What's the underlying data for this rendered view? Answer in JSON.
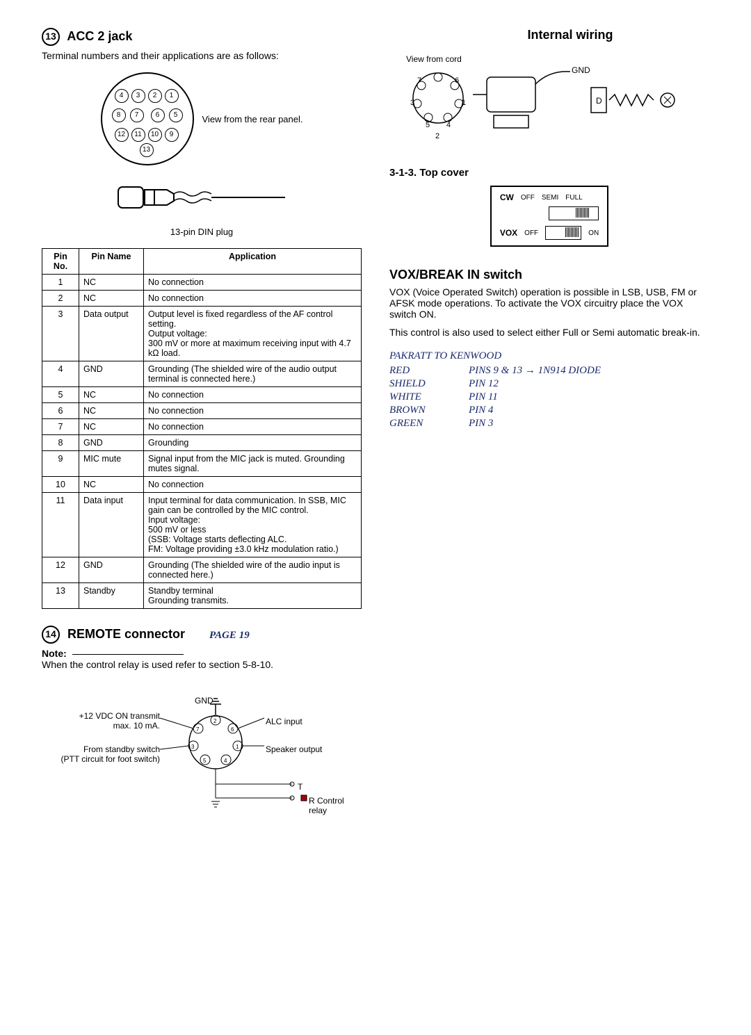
{
  "acc2": {
    "number": "13",
    "title": "ACC 2 jack",
    "intro": "Terminal numbers and their applications are as follows:",
    "view_label": "View from the rear panel.",
    "plug_caption": "13-pin DIN plug",
    "headers": {
      "pinno": "Pin No.",
      "pinname": "Pin Name",
      "application": "Application"
    },
    "rows": [
      {
        "no": "1",
        "name": "NC",
        "app": "No connection"
      },
      {
        "no": "2",
        "name": "NC",
        "app": "No connection"
      },
      {
        "no": "3",
        "name": "Data output",
        "app": "Output level is fixed regardless of the AF control setting.\nOutput voltage:\n  300 mV or more at maximum receiving input with 4.7 kΩ load."
      },
      {
        "no": "4",
        "name": "GND",
        "app": "Grounding (The shielded wire of the audio output terminal is connected here.)"
      },
      {
        "no": "5",
        "name": "NC",
        "app": "No connection"
      },
      {
        "no": "6",
        "name": "NC",
        "app": "No connection"
      },
      {
        "no": "7",
        "name": "NC",
        "app": "No connection"
      },
      {
        "no": "8",
        "name": "GND",
        "app": "Grounding"
      },
      {
        "no": "9",
        "name": "MIC mute",
        "app": "Signal input from the MIC jack is muted. Grounding mutes signal."
      },
      {
        "no": "10",
        "name": "NC",
        "app": "No connection"
      },
      {
        "no": "11",
        "name": "Data input",
        "app": "Input terminal for data communication. In SSB, MIC gain can be controlled by the MIC control.\nInput voltage:\n  500 mV or less\n  (SSB: Voltage starts deflecting ALC.\n   FM: Voltage providing ±3.0 kHz modulation ratio.)"
      },
      {
        "no": "12",
        "name": "GND",
        "app": "Grounding (The shielded wire of the audio input is connected here.)"
      },
      {
        "no": "13",
        "name": "Standby",
        "app": "Standby terminal\nGrounding transmits."
      }
    ]
  },
  "remote": {
    "number": "14",
    "title": "REMOTE connector",
    "page_note": "PAGE 19",
    "note_label": "Note:",
    "note_text": "When the control relay is used refer to section 5-8-10.",
    "labels": {
      "vdc": "+12 VDC ON transmit\nmax. 10 mA.",
      "standby": "From standby switch\n(PTT circuit for foot switch)",
      "gnd": "GND",
      "alc": "ALC input",
      "speaker": "Speaker output",
      "t": "T",
      "relay": "R Control relay"
    }
  },
  "internal": {
    "title": "Internal wiring",
    "view": "View from cord",
    "pins": [
      "1",
      "2",
      "3",
      "4",
      "5",
      "6",
      "7"
    ],
    "gnd": "GND"
  },
  "topcover": {
    "heading": "3-1-3.  Top cover",
    "cw": "CW",
    "vox": "VOX",
    "off1": "OFF",
    "semi": "SEMI",
    "full": "FULL",
    "off2": "OFF",
    "on": "ON"
  },
  "voxbreak": {
    "title": "VOX/BREAK IN switch",
    "p1": "VOX (Voice Operated Switch) operation is possible in LSB, USB, FM or AFSK mode operations. To activate the VOX circuitry place the VOX switch ON.",
    "p2": "This control is also used to select either Full or Semi automatic break-in."
  },
  "pakratt": {
    "title": "PAKRATT TO KENWOOD",
    "rows": [
      {
        "c1": "RED",
        "c2": "PINS 9 & 13 → 1N914 DIODE"
      },
      {
        "c1": "SHIELD",
        "c2": "PIN  12"
      },
      {
        "c1": "WHITE",
        "c2": "PIN  11"
      },
      {
        "c1": "BROWN",
        "c2": "PIN  4"
      },
      {
        "c1": "GREEN",
        "c2": "PIN  3"
      }
    ]
  },
  "din_pins": [
    "1",
    "2",
    "3",
    "4",
    "5",
    "6",
    "7",
    "8",
    "9",
    "10",
    "11",
    "12",
    "13"
  ]
}
